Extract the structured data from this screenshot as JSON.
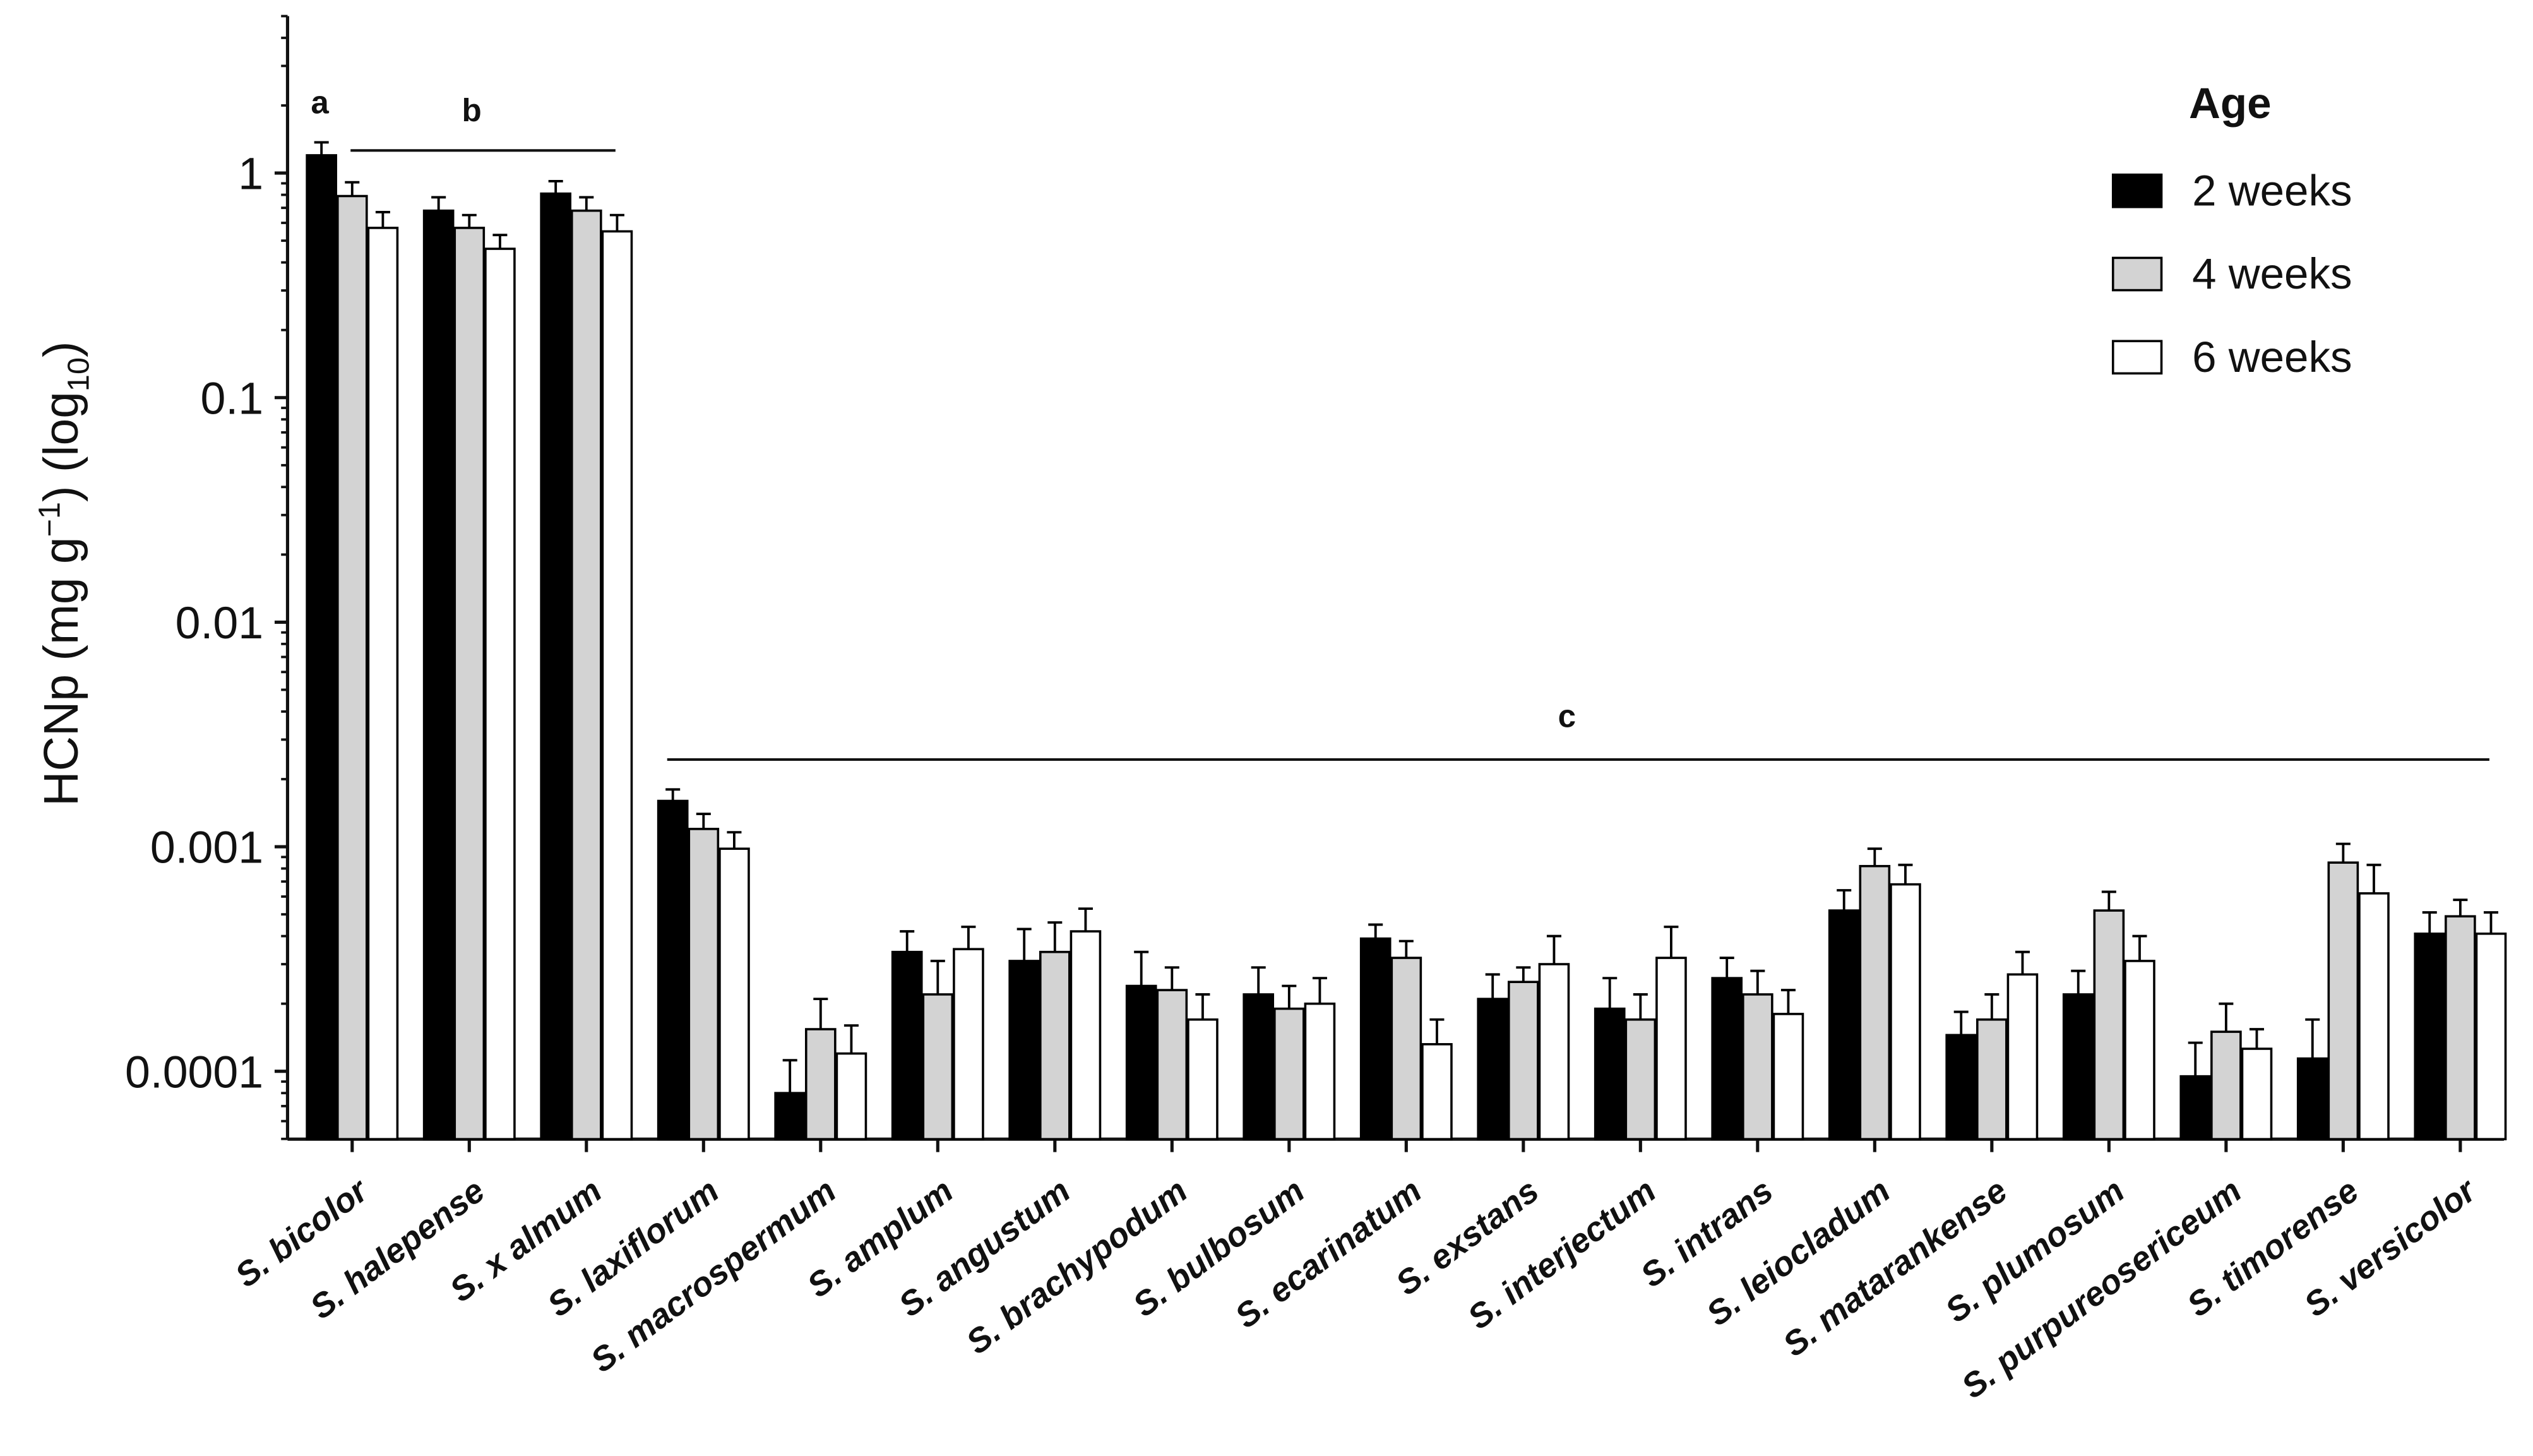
{
  "chart_data": {
    "type": "bar",
    "y_scale": "log",
    "ylim": [
      5e-05,
      5
    ],
    "grid": false,
    "legend_position": "top-right",
    "ylabel": {
      "prefix": "HCNp (mg g",
      "superscript": "−1",
      "middle": ") (log",
      "subscript": "10",
      "suffix": ")"
    },
    "y_ticks": [
      1,
      0.1,
      0.01,
      0.001,
      0.0001
    ],
    "y_tick_labels": [
      "1",
      "0.1",
      "0.01",
      "0.001",
      "0.0001"
    ],
    "categories": [
      "S. bicolor",
      "S. halepense",
      "S. x almum",
      "S. laxiflorum",
      "S. macrospermum",
      "S. amplum",
      "S. angustum",
      "S. brachypodum",
      "S. bulbosum",
      "S. ecarinatum",
      "S. exstans",
      "S. interjectum",
      "S. intrans",
      "S. leiocladum",
      "S. matarankense",
      "S. plumosum",
      "S. purpureosericeum",
      "S. timorense",
      "S. versicolor"
    ],
    "legend_title": "Age",
    "series": [
      {
        "name": "2 weeks",
        "color": "#000000",
        "values": [
          1.2,
          0.68,
          0.81,
          0.0016,
          8e-05,
          0.00034,
          0.00031,
          0.00024,
          0.00022,
          0.00039,
          0.00021,
          0.00019,
          0.00026,
          0.00052,
          0.000145,
          0.00022,
          9.5e-05,
          0.000114,
          0.00041
        ],
        "error_upper": [
          1.37,
          0.78,
          0.92,
          0.0018,
          0.000112,
          0.00042,
          0.00043,
          0.00034,
          0.00029,
          0.00045,
          0.00027,
          0.00026,
          0.00032,
          0.00064,
          0.000184,
          0.00028,
          0.000134,
          0.00017,
          0.00051
        ]
      },
      {
        "name": "4 weeks",
        "color": "#d3d3d3",
        "values": [
          0.79,
          0.57,
          0.68,
          0.0012,
          0.000154,
          0.00022,
          0.00034,
          0.00023,
          0.00019,
          0.00032,
          0.00025,
          0.00017,
          0.00022,
          0.00082,
          0.00017,
          0.00052,
          0.00015,
          0.00085,
          0.00049
        ],
        "error_upper": [
          0.91,
          0.65,
          0.78,
          0.0014,
          0.00021,
          0.00031,
          0.00046,
          0.00029,
          0.00024,
          0.00038,
          0.00029,
          0.00022,
          0.00028,
          0.00098,
          0.00022,
          0.00063,
          0.0002,
          0.00103,
          0.00058
        ]
      },
      {
        "name": "6 weeks",
        "color": "#ffffff",
        "values": [
          0.57,
          0.46,
          0.55,
          0.00098,
          0.00012,
          0.00035,
          0.00042,
          0.00017,
          0.0002,
          0.000132,
          0.0003,
          0.00032,
          0.00018,
          0.00068,
          0.00027,
          0.00031,
          0.000126,
          0.00062,
          0.00041
        ],
        "error_upper": [
          0.67,
          0.53,
          0.65,
          0.00116,
          0.00016,
          0.00044,
          0.00053,
          0.00022,
          0.00026,
          0.00017,
          0.0004,
          0.00044,
          0.00023,
          0.00083,
          0.00034,
          0.0004,
          0.000154,
          0.00083,
          0.00051
        ]
      }
    ],
    "annotations": [
      {
        "text": "a",
        "from": 0,
        "to": 0,
        "line": false
      },
      {
        "text": "b",
        "from": 0,
        "to": 2,
        "line": true
      },
      {
        "text": "c",
        "from": 3,
        "to": 18,
        "line": true
      }
    ]
  }
}
